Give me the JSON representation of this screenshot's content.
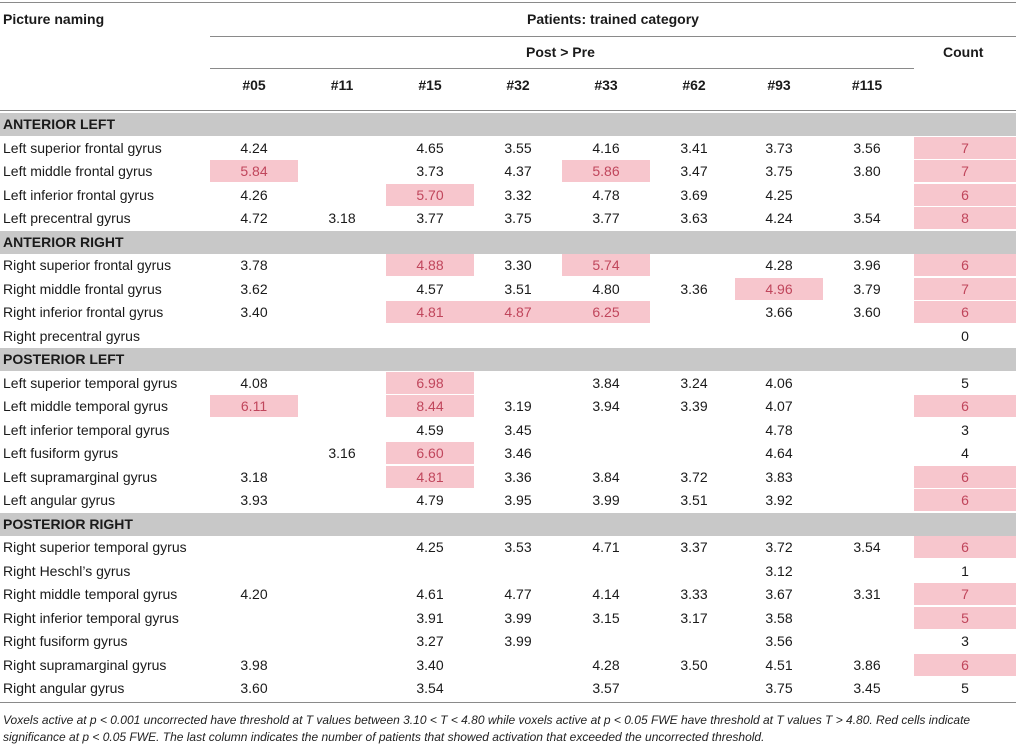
{
  "header": {
    "corner": "Picture naming",
    "group": "Patients: trained category",
    "subgroup": "Post > Pre",
    "count": "Count",
    "patients": [
      "#05",
      "#11",
      "#15",
      "#32",
      "#33",
      "#62",
      "#93",
      "#115"
    ]
  },
  "highlight_color": "#f7c6cd",
  "highlight_text_color": "#c0465c",
  "sections": [
    {
      "title": "ANTERIOR LEFT",
      "rows": [
        {
          "label": "Left superior frontal gyrus",
          "values": [
            "4.24",
            "",
            "4.65",
            "3.55",
            "4.16",
            "3.41",
            "3.73",
            "3.56"
          ],
          "hl": [],
          "count": "7",
          "count_hl": true
        },
        {
          "label": "Left middle frontal gyrus",
          "values": [
            "5.84",
            "",
            "3.73",
            "4.37",
            "5.86",
            "3.47",
            "3.75",
            "3.80"
          ],
          "hl": [
            0,
            4
          ],
          "count": "7",
          "count_hl": true
        },
        {
          "label": "Left inferior frontal gyrus",
          "values": [
            "4.26",
            "",
            "5.70",
            "3.32",
            "4.78",
            "3.69",
            "4.25",
            ""
          ],
          "hl": [
            2
          ],
          "count": "6",
          "count_hl": true
        },
        {
          "label": "Left precentral gyrus",
          "values": [
            "4.72",
            "3.18",
            "3.77",
            "3.75",
            "3.77",
            "3.63",
            "4.24",
            "3.54"
          ],
          "hl": [],
          "count": "8",
          "count_hl": true
        }
      ]
    },
    {
      "title": "ANTERIOR RIGHT",
      "rows": [
        {
          "label": "Right superior frontal gyrus",
          "values": [
            "3.78",
            "",
            "4.88",
            "3.30",
            "5.74",
            "",
            "4.28",
            "3.96"
          ],
          "hl": [
            2,
            4
          ],
          "count": "6",
          "count_hl": true
        },
        {
          "label": "Right middle frontal gyrus",
          "values": [
            "3.62",
            "",
            "4.57",
            "3.51",
            "4.80",
            "3.36",
            "4.96",
            "3.79"
          ],
          "hl": [
            6
          ],
          "count": "7",
          "count_hl": true
        },
        {
          "label": "Right inferior frontal gyrus",
          "values": [
            "3.40",
            "",
            "4.81",
            "4.87",
            "6.25",
            "",
            "3.66",
            "3.60"
          ],
          "hl": [
            2,
            3,
            4
          ],
          "count": "6",
          "count_hl": true
        },
        {
          "label": "Right precentral gyrus",
          "values": [
            "",
            "",
            "",
            "",
            "",
            "",
            "",
            ""
          ],
          "hl": [],
          "count": "0",
          "count_hl": false
        }
      ]
    },
    {
      "title": "POSTERIOR LEFT",
      "rows": [
        {
          "label": "Left superior temporal gyrus",
          "values": [
            "4.08",
            "",
            "6.98",
            "",
            "3.84",
            "3.24",
            "4.06",
            ""
          ],
          "hl": [
            2
          ],
          "count": "5",
          "count_hl": false
        },
        {
          "label": "Left middle temporal gyrus",
          "values": [
            "6.11",
            "",
            "8.44",
            "3.19",
            "3.94",
            "3.39",
            "4.07",
            ""
          ],
          "hl": [
            0,
            2
          ],
          "count": "6",
          "count_hl": true
        },
        {
          "label": "Left inferior temporal gyrus",
          "values": [
            "",
            "",
            "4.59",
            "3.45",
            "",
            "",
            "4.78",
            ""
          ],
          "hl": [],
          "count": "3",
          "count_hl": false
        },
        {
          "label": "Left fusiform gyrus",
          "values": [
            "",
            "3.16",
            "6.60",
            "3.46",
            "",
            "",
            "4.64",
            ""
          ],
          "hl": [
            2
          ],
          "count": "4",
          "count_hl": false
        },
        {
          "label": "Left supramarginal gyrus",
          "values": [
            "3.18",
            "",
            "4.81",
            "3.36",
            "3.84",
            "3.72",
            "3.83",
            ""
          ],
          "hl": [
            2
          ],
          "count": "6",
          "count_hl": true
        },
        {
          "label": "Left angular gyrus",
          "values": [
            "3.93",
            "",
            "4.79",
            "3.95",
            "3.99",
            "3.51",
            "3.92",
            ""
          ],
          "hl": [],
          "count": "6",
          "count_hl": true
        }
      ]
    },
    {
      "title": "POSTERIOR RIGHT",
      "rows": [
        {
          "label": "Right superior temporal gyrus",
          "values": [
            "",
            "",
            "4.25",
            "3.53",
            "4.71",
            "3.37",
            "3.72",
            "3.54"
          ],
          "hl": [],
          "count": "6",
          "count_hl": true
        },
        {
          "label": "Right Heschl’s gyrus",
          "values": [
            "",
            "",
            "",
            "",
            "",
            "",
            "3.12",
            ""
          ],
          "hl": [],
          "count": "1",
          "count_hl": false
        },
        {
          "label": "Right middle temporal gyrus",
          "values": [
            "4.20",
            "",
            "4.61",
            "4.77",
            "4.14",
            "3.33",
            "3.67",
            "3.31"
          ],
          "hl": [],
          "count": "7",
          "count_hl": true
        },
        {
          "label": "Right inferior temporal gyrus",
          "values": [
            "",
            "",
            "3.91",
            "3.99",
            "3.15",
            "3.17",
            "3.58",
            ""
          ],
          "hl": [],
          "count": "5",
          "count_hl": true
        },
        {
          "label": "Right fusiform gyrus",
          "values": [
            "",
            "",
            "3.27",
            "3.99",
            "",
            "",
            "3.56",
            ""
          ],
          "hl": [],
          "count": "3",
          "count_hl": false
        },
        {
          "label": "Right supramarginal gyrus",
          "values": [
            "3.98",
            "",
            "3.40",
            "",
            "4.28",
            "3.50",
            "4.51",
            "3.86"
          ],
          "hl": [],
          "count": "6",
          "count_hl": true
        },
        {
          "label": "Right angular gyrus",
          "values": [
            "3.60",
            "",
            "3.54",
            "",
            "3.57",
            "",
            "3.75",
            "3.45"
          ],
          "hl": [],
          "count": "5",
          "count_hl": false
        }
      ]
    }
  ],
  "footnote": "Voxels active at p < 0.001 uncorrected have threshold at T values between 3.10 < T < 4.80 while voxels active at p < 0.05 FWE have threshold at T values T > 4.80. Red cells indicate significance at p < 0.05 FWE. The last column indicates the number of patients that showed activation that exceeded the uncorrected threshold."
}
